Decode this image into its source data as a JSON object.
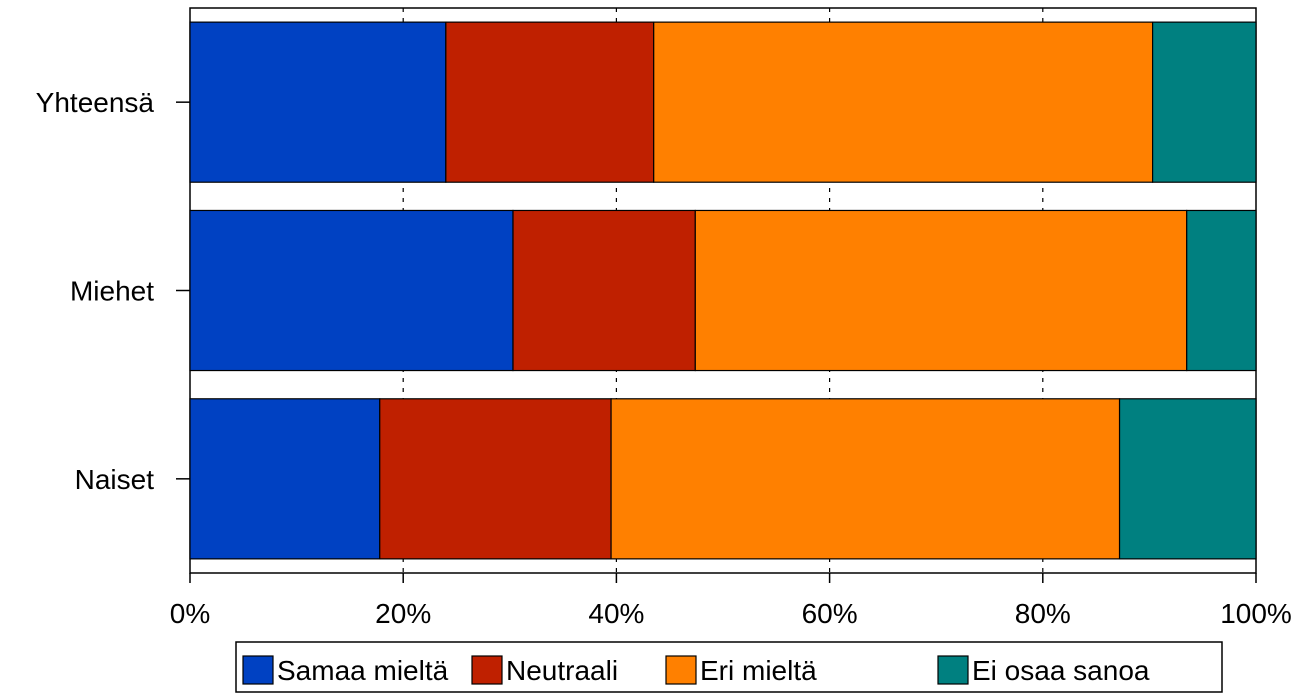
{
  "chart_data": {
    "type": "bar",
    "orientation": "horizontal",
    "stacked": true,
    "percent_stacked": true,
    "categories": [
      "Yhteensä",
      "Miehet",
      "Naiset"
    ],
    "series": [
      {
        "name": "Samaa mieltä",
        "values": [
          24.0,
          30.3,
          17.8
        ],
        "color": "#0041c2"
      },
      {
        "name": "Neutraali",
        "values": [
          19.5,
          17.1,
          21.7
        ],
        "color": "#bf2000"
      },
      {
        "name": "Eri mieltä",
        "values": [
          46.8,
          46.1,
          47.7
        ],
        "color": "#ff8000"
      },
      {
        "name": "Ei osaa sanoa",
        "values": [
          9.7,
          6.5,
          12.8
        ],
        "color": "#008080"
      }
    ],
    "x_ticks": [
      "0%",
      "20%",
      "40%",
      "60%",
      "80%",
      "100%"
    ],
    "xlim": [
      0,
      100
    ],
    "grid": "vertical dashed",
    "legend_position": "bottom"
  }
}
